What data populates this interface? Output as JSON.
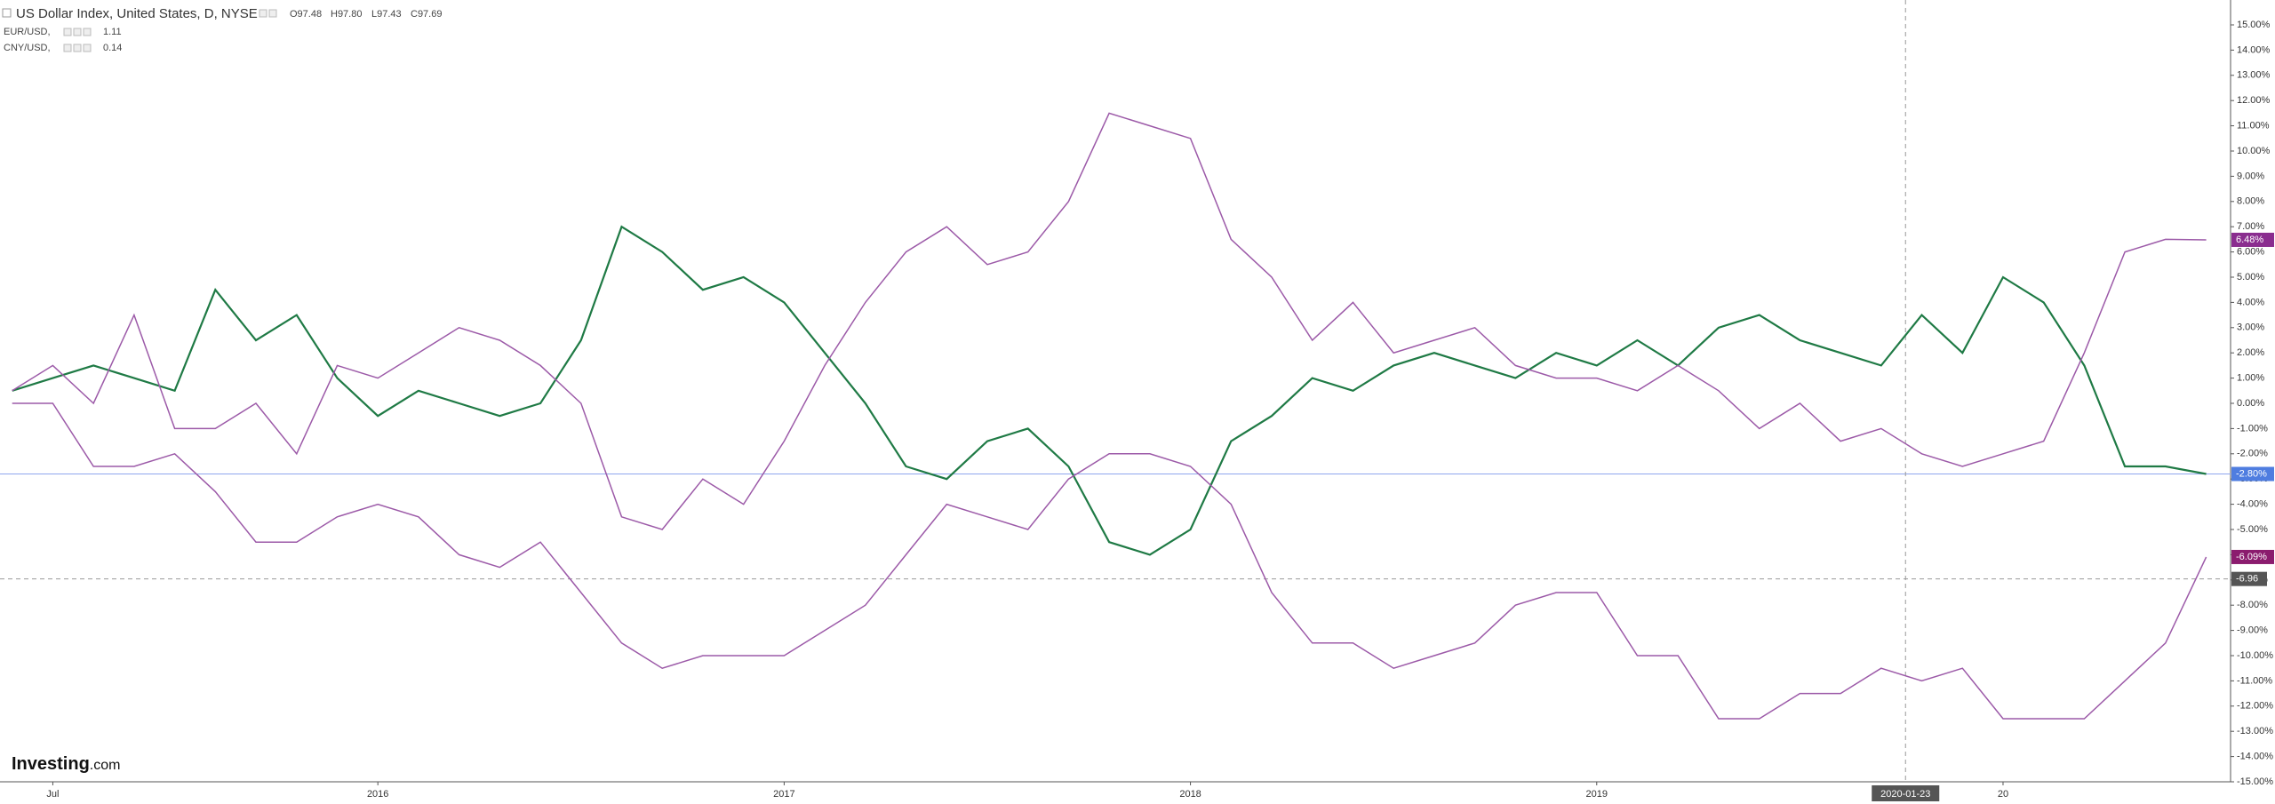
{
  "chart_data": {
    "type": "line",
    "legend": {
      "main": "US Dollar Index, United States, D, NYSE",
      "open": "O97.48",
      "high": "H97.80",
      "low": "L97.43",
      "close": "C97.69",
      "eur": "EUR/USD,",
      "eur_value": "1.11",
      "cny": "CNY/USD,",
      "cny_value": "0.14"
    },
    "logo": "Investing",
    "logo_suffix": ".com",
    "x": [
      2015.1,
      2015.2,
      2015.3,
      2015.4,
      2015.5,
      2015.6,
      2015.7,
      2015.8,
      2015.9,
      2016.0,
      2016.1,
      2016.2,
      2016.3,
      2016.4,
      2016.5,
      2016.6,
      2016.7,
      2016.8,
      2016.9,
      2017.0,
      2017.1,
      2017.2,
      2017.3,
      2017.4,
      2017.5,
      2017.6,
      2017.7,
      2017.8,
      2017.9,
      2018.0,
      2018.1,
      2018.2,
      2018.3,
      2018.4,
      2018.5,
      2018.6,
      2018.7,
      2018.8,
      2018.9,
      2019.0,
      2019.1,
      2019.2,
      2019.3,
      2019.4,
      2019.5,
      2019.6,
      2019.7,
      2019.8,
      2019.9,
      2020.0,
      2020.1,
      2020.2,
      2020.3,
      2020.4,
      2020.5
    ],
    "series": [
      {
        "name": "US Dollar Index",
        "color": "#1f7a45",
        "last_label": "-2.80%",
        "label_color": "#4f7de0",
        "values": [
          0.5,
          1.0,
          1.5,
          1.0,
          0.5,
          4.5,
          2.5,
          3.5,
          1.0,
          -0.5,
          0.5,
          0,
          -0.5,
          0,
          2.5,
          7.0,
          6.0,
          4.5,
          5.0,
          4.0,
          2.0,
          0,
          -2.5,
          -3.0,
          -1.5,
          -1.0,
          -2.5,
          -5.5,
          -6.0,
          -5.0,
          -1.5,
          -0.5,
          1.0,
          0.5,
          1.5,
          2.0,
          1.5,
          1.0,
          2.0,
          1.5,
          2.5,
          1.5,
          3.0,
          3.5,
          2.5,
          2.0,
          1.5,
          3.5,
          2.0,
          5.0,
          4.0,
          1.5,
          -2.5,
          -2.5,
          -2.8
        ]
      },
      {
        "name": "EUR/USD",
        "color": "#9c5aa8",
        "last_label": "6.48%",
        "label_color": "#8a2d8f",
        "values": [
          0.5,
          1.5,
          0.0,
          3.5,
          -1.0,
          -1.0,
          0,
          -2.0,
          1.5,
          1.0,
          2.0,
          3.0,
          2.5,
          1.5,
          0,
          -4.5,
          -5.0,
          -3.0,
          -4.0,
          -1.5,
          1.5,
          4.0,
          6.0,
          7.0,
          5.5,
          6.0,
          8.0,
          11.5,
          11.0,
          10.5,
          6.5,
          5.0,
          2.5,
          4.0,
          2.0,
          2.5,
          3.0,
          1.5,
          1.0,
          1.0,
          0.5,
          1.5,
          0.5,
          -1.0,
          0.0,
          -1.5,
          -1.0,
          -2.0,
          -2.5,
          -2.0,
          -1.5,
          2.0,
          6.0,
          6.5,
          6.48
        ]
      },
      {
        "name": "CNY/USD",
        "color": "#9c5aa8",
        "last_label": "-6.09%",
        "label_color": "#8b1c6e",
        "values": [
          0,
          0,
          -2.5,
          -2.5,
          -2.0,
          -3.5,
          -5.5,
          -5.5,
          -4.5,
          -4.0,
          -4.5,
          -6.0,
          -6.5,
          -5.5,
          -7.5,
          -9.5,
          -10.5,
          -10.0,
          -10.0,
          -10.0,
          -9.0,
          -8.0,
          -6.0,
          -4.0,
          -4.5,
          -5.0,
          -3.0,
          -2.0,
          -2.0,
          -2.5,
          -4.0,
          -7.5,
          -9.5,
          -9.5,
          -10.5,
          -10.0,
          -9.5,
          -8.0,
          -7.5,
          -7.5,
          -10.0,
          -10.0,
          -12.5,
          -12.5,
          -11.5,
          -11.5,
          -10.5,
          -11.0,
          -10.5,
          -12.5,
          -12.5,
          -12.5,
          -11.0,
          -9.5,
          -6.09
        ]
      }
    ],
    "crosshair": {
      "x_label": "2020-01-23",
      "y": -6.96,
      "y_label": "-6.96"
    },
    "xlim": [
      2015.07,
      2020.56
    ],
    "xticks": [
      {
        "value": 2015.2,
        "label": "Jul"
      },
      2016,
      2017,
      2018,
      2019,
      {
        "value": 2020,
        "label": "20"
      }
    ],
    "ylim": [
      -15,
      15
    ],
    "yticks": [
      {
        "value": 15,
        "label": "15.00%"
      },
      {
        "value": 14,
        "label": "14.00%"
      },
      {
        "value": 13,
        "label": "13.00%"
      },
      {
        "value": 12,
        "label": "12.00%"
      },
      {
        "value": 11,
        "label": "11.00%"
      },
      {
        "value": 10,
        "label": "10.00%"
      },
      {
        "value": 9,
        "label": "9.00%"
      },
      {
        "value": 8,
        "label": "8.00%"
      },
      {
        "value": 7,
        "label": "7.00%"
      },
      {
        "value": 6,
        "label": "6.00%"
      },
      {
        "value": 5,
        "label": "5.00%"
      },
      {
        "value": 4,
        "label": "4.00%"
      },
      {
        "value": 3,
        "label": "3.00%"
      },
      {
        "value": 2,
        "label": "2.00%"
      },
      {
        "value": 1,
        "label": "1.00%"
      },
      {
        "value": 0,
        "label": "0.00%"
      },
      {
        "value": -1,
        "label": "-1.00%"
      },
      {
        "value": -2,
        "label": "-2.00%"
      },
      {
        "value": -3,
        "label": "-3.00%"
      },
      {
        "value": -4,
        "label": "-4.00%"
      },
      {
        "value": -5,
        "label": "-5.00%"
      },
      {
        "value": -6,
        "label": "-6.00%"
      },
      {
        "value": -7,
        "label": "-7.00%"
      },
      {
        "value": -8,
        "label": "-8.00%"
      },
      {
        "value": -9,
        "label": "-9.00%"
      },
      {
        "value": -10,
        "label": "-10.00%"
      },
      {
        "value": -11,
        "label": "-11.00%"
      },
      {
        "value": -12,
        "label": "-12.00%"
      },
      {
        "value": -13,
        "label": "-13.00%"
      },
      {
        "value": -14,
        "label": "-14.00%"
      },
      {
        "value": -15,
        "label": "-15.00%"
      }
    ],
    "grid": false
  }
}
